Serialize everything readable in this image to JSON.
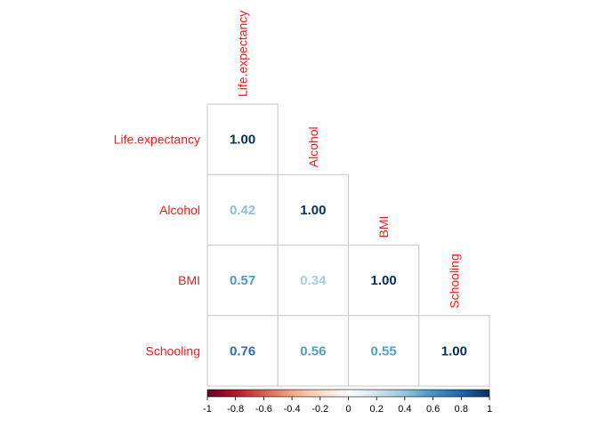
{
  "chart_data": {
    "type": "heatmap",
    "variables": [
      "Life.expectancy",
      "Alcohol",
      "BMI",
      "Schooling"
    ],
    "matrix": [
      [
        1.0,
        null,
        null,
        null
      ],
      [
        0.42,
        1.0,
        null,
        null
      ],
      [
        0.57,
        0.34,
        1.0,
        null
      ],
      [
        0.76,
        0.56,
        0.55,
        1.0
      ]
    ],
    "value_labels": [
      [
        "1.00",
        null,
        null,
        null
      ],
      [
        "0.42",
        "1.00",
        null,
        null
      ],
      [
        "0.57",
        "0.34",
        "1.00",
        null
      ],
      [
        "0.76",
        "0.56",
        "0.55",
        "1.00"
      ]
    ],
    "layout": "lower-triangular",
    "color_scale": {
      "range": [
        -1,
        1
      ],
      "ticks": [
        "-1",
        "-0.8",
        "-0.6",
        "-0.4",
        "-0.2",
        "0",
        "0.2",
        "0.4",
        "0.6",
        "0.8",
        "1"
      ],
      "colors": [
        "#67001f",
        "#b2182b",
        "#d6604d",
        "#f4a582",
        "#fddbc7",
        "#ffffff",
        "#d1e5f0",
        "#92c5de",
        "#4393c3",
        "#2166ac",
        "#053061"
      ]
    },
    "label_color": "#e8201e",
    "legend": "bottom"
  }
}
